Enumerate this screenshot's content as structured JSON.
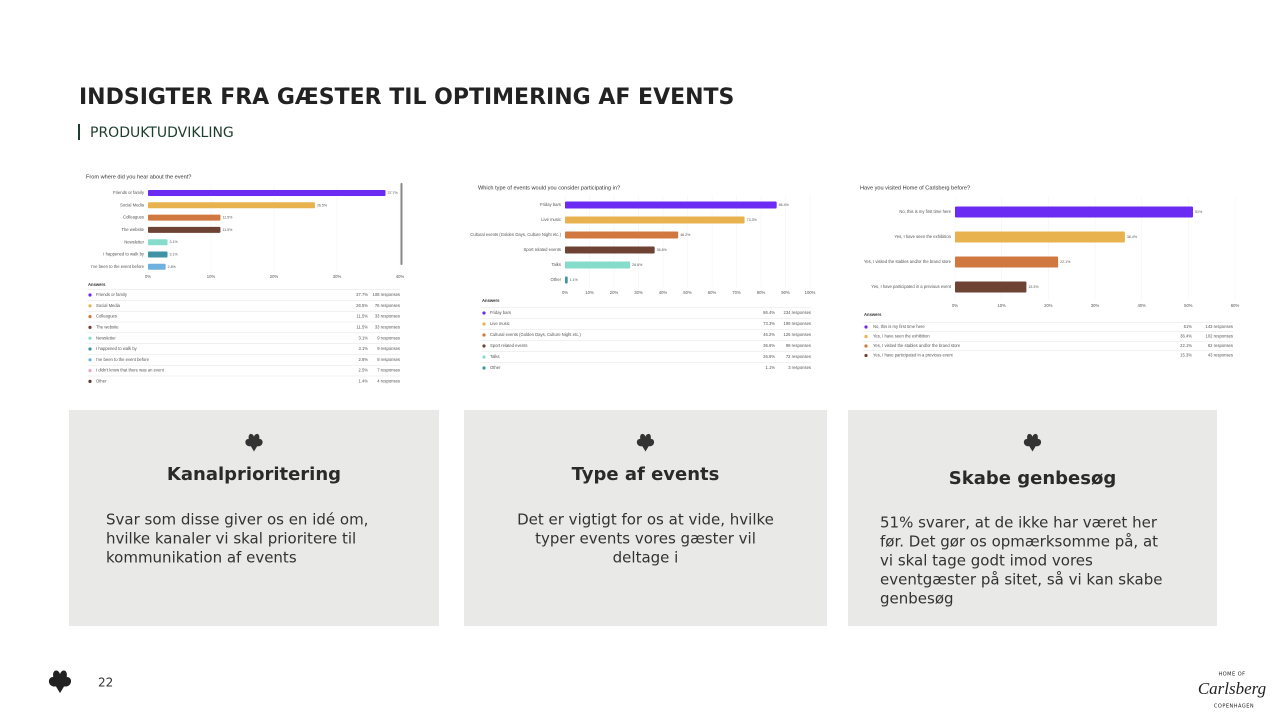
{
  "header": {
    "title": "INDSIGTER FRA GÆSTER TIL OPTIMERING AF EVENTS",
    "subtitle": "PRODUKTUDVIKLING"
  },
  "charts": [
    {
      "type": "bar",
      "title": "From where did you hear about the event?",
      "categories": [
        "Friends or family",
        "Social Media",
        "Colleagues",
        "The website",
        "Newsletter",
        "I happened to walk by",
        "I've been to the event before"
      ],
      "values": [
        37.7,
        26.5,
        11.5,
        11.5,
        3.1,
        3.1,
        2.8
      ],
      "value_labels": [
        "37.7%",
        "26.5%",
        "11.5%",
        "11.5%",
        "3.1%",
        "3.1%",
        "2.8%"
      ],
      "colors": [
        "#6c2bf2",
        "#e8b24f",
        "#d17840",
        "#6e4334",
        "#86dccb",
        "#3f93a4",
        "#6fb2e0"
      ],
      "xlim": [
        0,
        40
      ],
      "xticks": [
        {
          "value": 0,
          "label": "0%"
        },
        {
          "value": 10,
          "label": "10%"
        },
        {
          "value": 20,
          "label": "20%"
        },
        {
          "value": 30,
          "label": "30%"
        },
        {
          "value": 40,
          "label": "40%"
        }
      ],
      "table": {
        "header": "Answers",
        "colors": [
          "#6c2bf2",
          "#e8b24f",
          "#d17840",
          "#6e4334",
          "#86dccb",
          "#3f93a4",
          "#6fb2e0",
          "#eaa3cb",
          "#5b3a30"
        ],
        "rows": [
          [
            "Friends or family",
            "37.7%",
            "108 responses"
          ],
          [
            "Social Media",
            "26.5%",
            "76 responses"
          ],
          [
            "Colleagues",
            "11.5%",
            "33 responses"
          ],
          [
            "The website",
            "11.5%",
            "33 responses"
          ],
          [
            "Newsletter",
            "3.1%",
            "9 responses"
          ],
          [
            "I happened to walk by",
            "3.1%",
            "9 responses"
          ],
          [
            "I've been to the event before",
            "2.8%",
            "8 responses"
          ],
          [
            "I didn't know that there was an event",
            "2.5%",
            "7 responses"
          ],
          [
            "Other",
            "1.4%",
            "4 responses"
          ]
        ]
      }
    },
    {
      "type": "bar",
      "title": "Which type of events would you consider participating in?",
      "categories": [
        "Friday bars",
        "Live music",
        "Cultural events (Golden Days, Culture Night etc.)",
        "Sport related events",
        "Talks",
        "Other"
      ],
      "values": [
        86.4,
        73.3,
        46.2,
        36.6,
        26.6,
        1.1
      ],
      "value_labels": [
        "86.4%",
        "73.3%",
        "46.2%",
        "36.6%",
        "26.6%",
        "1.1%"
      ],
      "colors": [
        "#6c2bf2",
        "#e8b24f",
        "#d17840",
        "#6e4334",
        "#86dccb",
        "#3f93a4"
      ],
      "xlim": [
        0,
        100
      ],
      "xticks": [
        {
          "value": 0,
          "label": "0%"
        },
        {
          "value": 10,
          "label": "10%"
        },
        {
          "value": 20,
          "label": "20%"
        },
        {
          "value": 30,
          "label": "30%"
        },
        {
          "value": 40,
          "label": "40%"
        },
        {
          "value": 50,
          "label": "50%"
        },
        {
          "value": 60,
          "label": "60%"
        },
        {
          "value": 70,
          "label": "70%"
        },
        {
          "value": 80,
          "label": "80%"
        },
        {
          "value": 90,
          "label": "90%"
        },
        {
          "value": 100,
          "label": "100%"
        }
      ],
      "table": {
        "header": "Answers",
        "colors": [
          "#6c2bf2",
          "#e8b24f",
          "#d17840",
          "#6e4334",
          "#86dccb",
          "#3f93a4"
        ],
        "rows": [
          [
            "Friday bars",
            "86.4%",
            "234 responses"
          ],
          [
            "Live music",
            "73.3%",
            "199 responses"
          ],
          [
            "Cultural events (Golden Days, Culture Night etc.)",
            "46.2%",
            "125 responses"
          ],
          [
            "Sport related events",
            "36.6%",
            "99 responses"
          ],
          [
            "Talks",
            "26.6%",
            "72 responses"
          ],
          [
            "Other",
            "1.1%",
            "3 responses"
          ]
        ]
      }
    },
    {
      "type": "bar",
      "title": "Have you visited Home of Carlsberg before?",
      "categories": [
        "No, this is my first time here",
        "Yes, I have seen the exhibition",
        "Yes, I visited the stables and/or the brand store",
        "Yes, I have participated in a previous event"
      ],
      "values": [
        51,
        36.4,
        22.1,
        15.3
      ],
      "value_labels": [
        "51%",
        "36.4%",
        "22.1%",
        "15.3%"
      ],
      "colors": [
        "#6c2bf2",
        "#e8b24f",
        "#d17840",
        "#6e4334"
      ],
      "xlim": [
        0,
        60
      ],
      "xticks": [
        {
          "value": 0,
          "label": "0%"
        },
        {
          "value": 10,
          "label": "10%"
        },
        {
          "value": 20,
          "label": "20%"
        },
        {
          "value": 30,
          "label": "30%"
        },
        {
          "value": 40,
          "label": "40%"
        },
        {
          "value": 50,
          "label": "50%"
        },
        {
          "value": 60,
          "label": "60%"
        }
      ],
      "table": {
        "header": "Answers",
        "colors": [
          "#6c2bf2",
          "#e8b24f",
          "#d17840",
          "#6e4334"
        ],
        "rows": [
          [
            "No, this is my first time here",
            "51%",
            "143 responses"
          ],
          [
            "Yes, I have seen the exhibition",
            "36.4%",
            "102 responses"
          ],
          [
            "Yes, I visited the stables and/or the brand store",
            "22.1%",
            "62 responses"
          ],
          [
            "Yes, I have participated in a previous event",
            "15.3%",
            "43 responses"
          ]
        ]
      }
    }
  ],
  "cards": [
    {
      "title": "Kanalprioritering",
      "lines": [
        "Svar som disse giver os en idé om,",
        "hvilke kanaler vi skal prioritere til",
        "kommunikation af events"
      ]
    },
    {
      "title": "Type af events",
      "lines": [
        "Det er vigtigt for os at vide, hvilke",
        "typer events vores gæster vil",
        "deltage i"
      ]
    },
    {
      "title": "Skabe genbesøg",
      "lines": [
        "51% svarer, at de ikke har været her",
        "før. Det gør os opmærksomme på, at",
        "vi skal tage godt imod vores",
        "eventgæster på sitet, så vi kan skabe",
        "genbesøg"
      ]
    }
  ],
  "footer": {
    "page": "22",
    "logo": [
      "HOME OF",
      "Carlsberg",
      "COPENHAGEN"
    ]
  }
}
